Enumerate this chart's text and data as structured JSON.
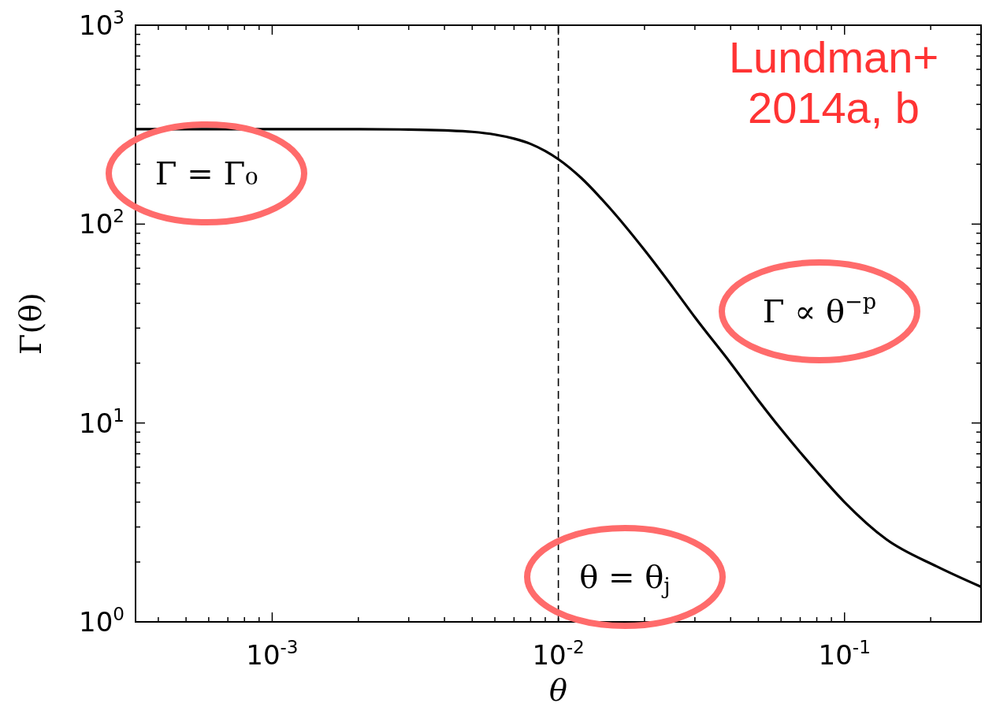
{
  "chart_data": {
    "type": "line",
    "xlabel": "θ",
    "ylabel": "Γ(θ)",
    "log": "xy",
    "xlim": [
      0.000333,
      0.3
    ],
    "ylim": [
      1,
      1000
    ],
    "xticks": [
      {
        "value": 0.0004,
        "label": null
      },
      {
        "value": 0.0005,
        "label": null
      },
      {
        "value": 0.0006,
        "label": null
      },
      {
        "value": 0.0007,
        "label": null
      },
      {
        "value": 0.0008,
        "label": null
      },
      {
        "value": 0.0009,
        "label": null
      },
      {
        "value": 0.001,
        "label": "10$^{-3}$"
      },
      {
        "value": 0.002,
        "label": null
      },
      {
        "value": 0.003,
        "label": null
      },
      {
        "value": 0.004,
        "label": null
      },
      {
        "value": 0.005,
        "label": null
      },
      {
        "value": 0.006,
        "label": null
      },
      {
        "value": 0.007,
        "label": null
      },
      {
        "value": 0.008,
        "label": null
      },
      {
        "value": 0.009,
        "label": null
      },
      {
        "value": 0.01,
        "label": "10$^{-2}$"
      },
      {
        "value": 0.02,
        "label": null
      },
      {
        "value": 0.03,
        "label": null
      },
      {
        "value": 0.04,
        "label": null
      },
      {
        "value": 0.05,
        "label": null
      },
      {
        "value": 0.06,
        "label": null
      },
      {
        "value": 0.07,
        "label": null
      },
      {
        "value": 0.08,
        "label": null
      },
      {
        "value": 0.09,
        "label": null
      },
      {
        "value": 0.1,
        "label": "10$^{-1}$"
      },
      {
        "value": 0.2,
        "label": null
      },
      {
        "value": 0.3,
        "label": null
      }
    ],
    "yticks": [
      {
        "value": 1,
        "label": "10$^{0}$"
      },
      {
        "value": 2,
        "label": null
      },
      {
        "value": 3,
        "label": null
      },
      {
        "value": 4,
        "label": null
      },
      {
        "value": 5,
        "label": null
      },
      {
        "value": 6,
        "label": null
      },
      {
        "value": 7,
        "label": null
      },
      {
        "value": 8,
        "label": null
      },
      {
        "value": 9,
        "label": null
      },
      {
        "value": 10,
        "label": "10$^{1}$"
      },
      {
        "value": 20,
        "label": null
      },
      {
        "value": 30,
        "label": null
      },
      {
        "value": 40,
        "label": null
      },
      {
        "value": 50,
        "label": null
      },
      {
        "value": 60,
        "label": null
      },
      {
        "value": 70,
        "label": null
      },
      {
        "value": 80,
        "label": null
      },
      {
        "value": 90,
        "label": null
      },
      {
        "value": 100,
        "label": "10$^{2}$"
      },
      {
        "value": 200,
        "label": null
      },
      {
        "value": 300,
        "label": null
      },
      {
        "value": 400,
        "label": null
      },
      {
        "value": 500,
        "label": null
      },
      {
        "value": 600,
        "label": null
      },
      {
        "value": 700,
        "label": null
      },
      {
        "value": 800,
        "label": null
      },
      {
        "value": 900,
        "label": null
      },
      {
        "value": 1000,
        "label": "10$^{3}$"
      }
    ],
    "grid": false,
    "marker": "none",
    "line_style": "solid",
    "series": [
      {
        "color": "#000000",
        "x": [
          0.000333,
          0.001,
          0.002,
          0.003,
          0.004,
          0.005,
          0.006,
          0.007,
          0.008,
          0.009,
          0.01,
          0.012,
          0.015,
          0.02,
          0.026,
          0.03,
          0.04,
          0.05,
          0.06,
          0.08,
          0.1,
          0.14,
          0.21,
          0.3
        ],
        "values": [
          300,
          300,
          300,
          299,
          296,
          291,
          282,
          269,
          253,
          233,
          212,
          171,
          122,
          74,
          45,
          34,
          20,
          13,
          9.3,
          5.7,
          4,
          2.6,
          1.9,
          1.5
        ]
      }
    ],
    "ref_lines": [
      {
        "axis": "x",
        "value": 0.01,
        "color": "#000000",
        "line_style": "dashed"
      }
    ],
    "annotations": [
      "Γ = Γ₀",
      "Γ ∝ θ$^{−p}$",
      "θ = θ$_{j}$",
      "Lundman+ 2014a, b"
    ]
  }
}
